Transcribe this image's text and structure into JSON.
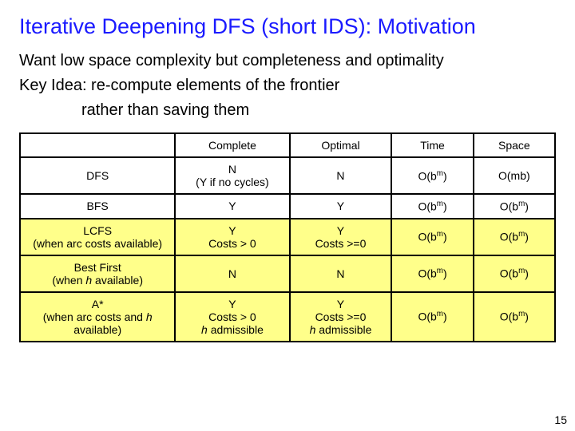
{
  "title": "Iterative Deepening DFS (short IDS): Motivation",
  "line1": "Want low space complexity but completeness and optimality",
  "line2": "Key Idea: re-compute elements of the frontier",
  "line3": "rather than saving them",
  "headers": {
    "complete": "Complete",
    "optimal": "Optimal",
    "time": "Time",
    "space": "Space"
  },
  "rows": {
    "dfs": {
      "name": "DFS",
      "complete_l1": "N",
      "complete_l2": "(Y if no cycles)",
      "optimal": "N"
    },
    "bfs": {
      "name": "BFS",
      "complete": "Y",
      "optimal": "Y"
    },
    "lcfs": {
      "name_l1": "LCFS",
      "name_l2": "(when arc costs available)",
      "complete_l1": "Y",
      "complete_l2": "Costs > 0",
      "optimal_l1": "Y",
      "optimal_l2": "Costs >=0"
    },
    "bestfirst": {
      "name_l1": "Best First",
      "name_l2_pre": "(when ",
      "name_l2_h": "h",
      "name_l2_post": " available)",
      "complete": "N",
      "optimal": "N"
    },
    "astar": {
      "name_l1": "A*",
      "name_l2_pre": "(when arc costs and ",
      "name_l2_h": "h",
      "name_l2_post": " available)",
      "complete_l1": "Y",
      "complete_l2": "Costs > 0",
      "complete_l3_h": "h",
      "complete_l3_rest": " admissible",
      "optimal_l1": "Y",
      "optimal_l2": "Costs >=0",
      "optimal_l3_h": "h",
      "optimal_l3_rest": " admissible"
    }
  },
  "bigO": {
    "ob": "O(b",
    "m": "m",
    "close": ")",
    "omb": "O(mb)"
  },
  "slidenum": "15",
  "colors": {
    "title": "#1a1aff",
    "highlight": "#ffff8a",
    "border": "#000000",
    "bg": "#ffffff"
  },
  "fontsizes": {
    "title": 27,
    "body": 20,
    "table": 14,
    "slidenum": 14
  }
}
